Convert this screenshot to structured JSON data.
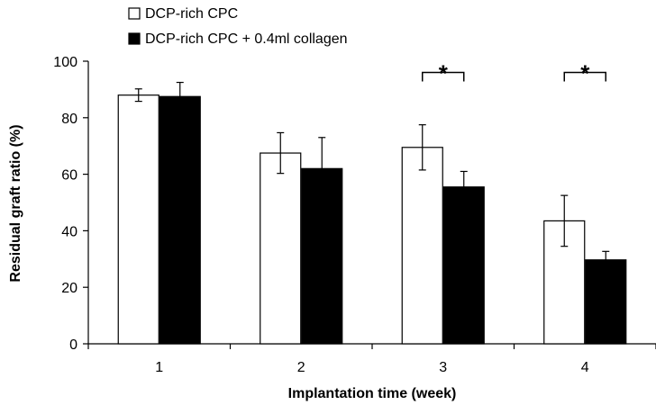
{
  "chart_data": {
    "type": "bar",
    "title": "",
    "xlabel": "Implantation time (week)",
    "ylabel": "Residual graft ratio (%)",
    "ylim": [
      0,
      100
    ],
    "yticks": [
      0,
      20,
      40,
      60,
      80,
      100
    ],
    "grid": false,
    "legend_position": "top-left",
    "categories": [
      "1",
      "2",
      "3",
      "4"
    ],
    "series": [
      {
        "name": "DCP-rich CPC",
        "fill": "#ffffff",
        "values": [
          88,
          67.5,
          69.5,
          43.5
        ],
        "errors": [
          2.2,
          7.2,
          8,
          9
        ]
      },
      {
        "name": "DCP-rich CPC + 0.4ml collagen",
        "fill": "#000000",
        "values": [
          87.5,
          62,
          55.5,
          29.7
        ],
        "errors": [
          5,
          11,
          5.5,
          3
        ]
      }
    ],
    "significance": [
      {
        "category": "3",
        "label": "*",
        "bracket_y": 96
      },
      {
        "category": "4",
        "label": "*",
        "bracket_y": 96
      }
    ]
  }
}
